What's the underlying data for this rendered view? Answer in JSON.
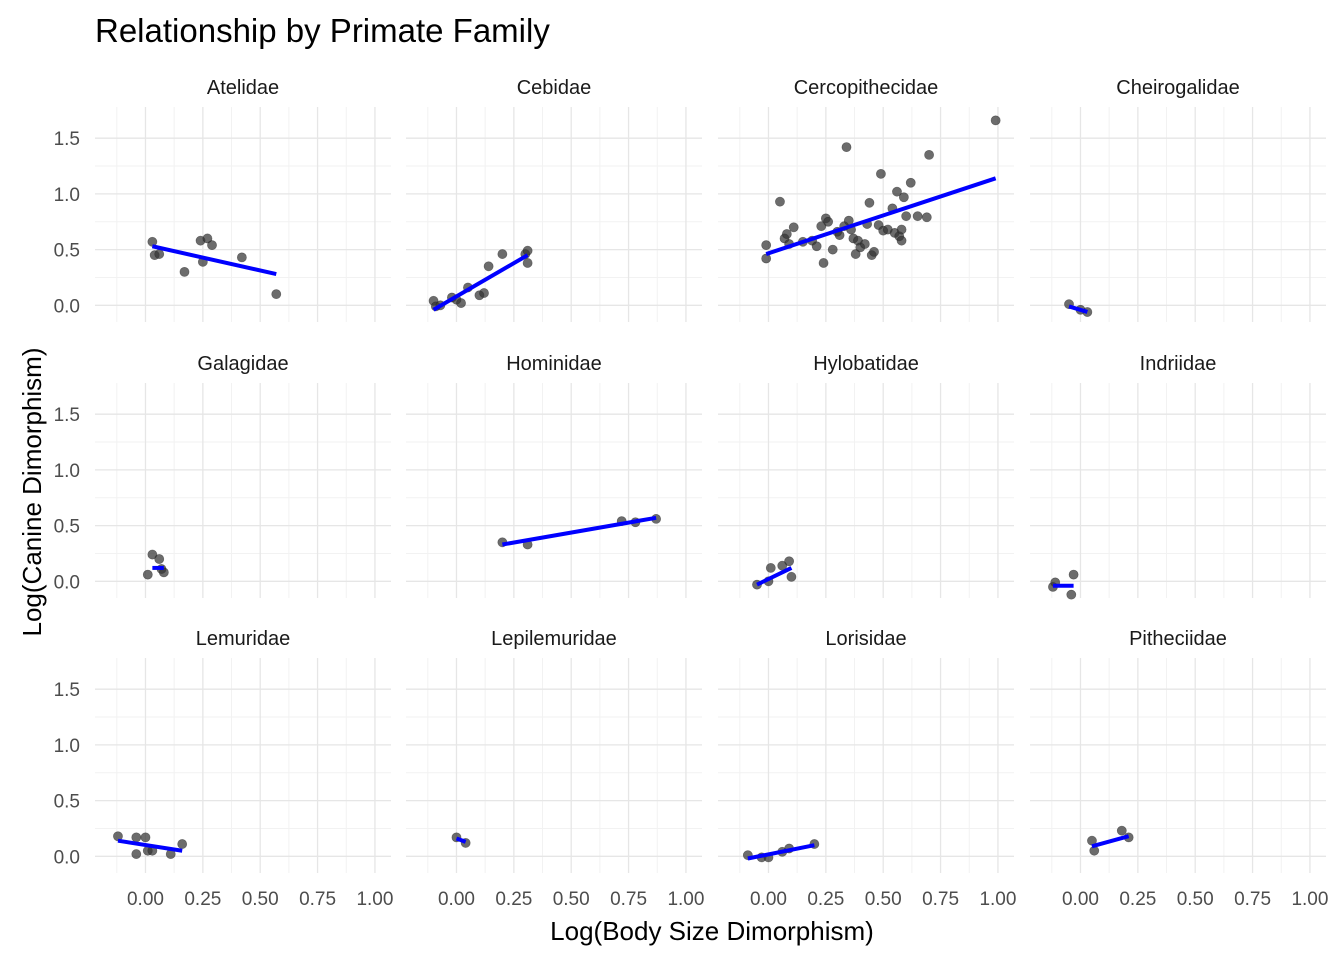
{
  "chart_data": {
    "type": "scatter",
    "title": "Relationship by Primate Family",
    "xlabel": "Log(Body Size Dimorphism)",
    "ylabel": "Log(Canine Dimorphism)",
    "xlim": [
      -0.22,
      1.07
    ],
    "ylim": [
      -0.15,
      1.78
    ],
    "x_ticks": [
      0.0,
      0.25,
      0.5,
      0.75,
      1.0
    ],
    "x_tick_labels": [
      "0.00",
      "0.25",
      "0.50",
      "0.75",
      "1.00"
    ],
    "y_ticks": [
      0.0,
      0.5,
      1.0,
      1.5
    ],
    "y_tick_labels": [
      "0.0",
      "0.5",
      "1.0",
      "1.5"
    ],
    "grid": true,
    "point_color": "#333333",
    "line_color": "#0000ff",
    "panels": [
      {
        "name": "Atelidae",
        "points": [
          [
            0.03,
            0.57
          ],
          [
            0.04,
            0.45
          ],
          [
            0.06,
            0.46
          ],
          [
            0.17,
            0.3
          ],
          [
            0.24,
            0.58
          ],
          [
            0.25,
            0.39
          ],
          [
            0.27,
            0.6
          ],
          [
            0.29,
            0.54
          ],
          [
            0.42,
            0.43
          ],
          [
            0.57,
            0.1
          ]
        ],
        "fit": [
          [
            0.03,
            0.53
          ],
          [
            0.57,
            0.28
          ]
        ]
      },
      {
        "name": "Cebidae",
        "points": [
          [
            -0.1,
            0.04
          ],
          [
            -0.09,
            -0.01
          ],
          [
            -0.07,
            0.0
          ],
          [
            -0.02,
            0.07
          ],
          [
            0.0,
            0.05
          ],
          [
            0.02,
            0.02
          ],
          [
            0.05,
            0.16
          ],
          [
            0.1,
            0.09
          ],
          [
            0.12,
            0.11
          ],
          [
            0.14,
            0.35
          ],
          [
            0.2,
            0.46
          ],
          [
            0.3,
            0.46
          ],
          [
            0.31,
            0.49
          ],
          [
            0.31,
            0.38
          ]
        ],
        "fit": [
          [
            -0.1,
            -0.04
          ],
          [
            0.31,
            0.45
          ]
        ]
      },
      {
        "name": "Cercopithecidae",
        "points": [
          [
            -0.01,
            0.42
          ],
          [
            -0.01,
            0.54
          ],
          [
            0.05,
            0.93
          ],
          [
            0.07,
            0.6
          ],
          [
            0.08,
            0.64
          ],
          [
            0.09,
            0.55
          ],
          [
            0.11,
            0.7
          ],
          [
            0.15,
            0.57
          ],
          [
            0.19,
            0.58
          ],
          [
            0.21,
            0.53
          ],
          [
            0.23,
            0.71
          ],
          [
            0.24,
            0.38
          ],
          [
            0.25,
            0.78
          ],
          [
            0.26,
            0.75
          ],
          [
            0.28,
            0.5
          ],
          [
            0.3,
            0.66
          ],
          [
            0.31,
            0.63
          ],
          [
            0.33,
            0.71
          ],
          [
            0.34,
            1.42
          ],
          [
            0.35,
            0.76
          ],
          [
            0.36,
            0.68
          ],
          [
            0.37,
            0.6
          ],
          [
            0.38,
            0.46
          ],
          [
            0.39,
            0.58
          ],
          [
            0.4,
            0.52
          ],
          [
            0.42,
            0.55
          ],
          [
            0.43,
            0.73
          ],
          [
            0.44,
            0.92
          ],
          [
            0.45,
            0.45
          ],
          [
            0.46,
            0.48
          ],
          [
            0.48,
            0.72
          ],
          [
            0.49,
            1.18
          ],
          [
            0.5,
            0.67
          ],
          [
            0.52,
            0.68
          ],
          [
            0.54,
            0.87
          ],
          [
            0.55,
            0.65
          ],
          [
            0.56,
            1.02
          ],
          [
            0.57,
            0.62
          ],
          [
            0.58,
            0.58
          ],
          [
            0.58,
            0.68
          ],
          [
            0.59,
            0.97
          ],
          [
            0.6,
            0.8
          ],
          [
            0.62,
            1.1
          ],
          [
            0.65,
            0.8
          ],
          [
            0.69,
            0.79
          ],
          [
            0.7,
            1.35
          ],
          [
            0.99,
            1.66
          ]
        ],
        "fit": [
          [
            -0.01,
            0.46
          ],
          [
            0.99,
            1.14
          ]
        ]
      },
      {
        "name": "Cheirogalidae",
        "points": [
          [
            -0.05,
            0.01
          ],
          [
            0.0,
            -0.04
          ],
          [
            0.03,
            -0.06
          ]
        ],
        "fit": [
          [
            -0.05,
            -0.01
          ],
          [
            0.03,
            -0.06
          ]
        ]
      },
      {
        "name": "Galagidae",
        "points": [
          [
            0.01,
            0.06
          ],
          [
            0.03,
            0.24
          ],
          [
            0.06,
            0.2
          ],
          [
            0.07,
            0.11
          ],
          [
            0.08,
            0.08
          ]
        ],
        "fit": [
          [
            0.03,
            0.12
          ],
          [
            0.08,
            0.12
          ]
        ]
      },
      {
        "name": "Hominidae",
        "points": [
          [
            0.2,
            0.35
          ],
          [
            0.31,
            0.33
          ],
          [
            0.72,
            0.54
          ],
          [
            0.78,
            0.53
          ],
          [
            0.87,
            0.56
          ]
        ],
        "fit": [
          [
            0.2,
            0.33
          ],
          [
            0.87,
            0.57
          ]
        ]
      },
      {
        "name": "Hylobatidae",
        "points": [
          [
            -0.05,
            -0.03
          ],
          [
            0.0,
            0.0
          ],
          [
            0.01,
            0.12
          ],
          [
            0.06,
            0.14
          ],
          [
            0.09,
            0.18
          ],
          [
            0.1,
            0.04
          ]
        ],
        "fit": [
          [
            -0.05,
            -0.03
          ],
          [
            0.1,
            0.12
          ]
        ]
      },
      {
        "name": "Indriidae",
        "points": [
          [
            -0.12,
            -0.05
          ],
          [
            -0.11,
            -0.01
          ],
          [
            -0.03,
            0.06
          ],
          [
            -0.04,
            -0.12
          ]
        ],
        "fit": [
          [
            -0.12,
            -0.04
          ],
          [
            -0.03,
            -0.04
          ]
        ]
      },
      {
        "name": "Lemuridae",
        "points": [
          [
            -0.12,
            0.18
          ],
          [
            -0.04,
            0.17
          ],
          [
            -0.04,
            0.02
          ],
          [
            0.0,
            0.17
          ],
          [
            0.01,
            0.05
          ],
          [
            0.03,
            0.05
          ],
          [
            0.11,
            0.02
          ],
          [
            0.16,
            0.11
          ]
        ],
        "fit": [
          [
            -0.12,
            0.14
          ],
          [
            0.16,
            0.05
          ]
        ]
      },
      {
        "name": "Lepilemuridae",
        "points": [
          [
            0.0,
            0.17
          ],
          [
            0.04,
            0.12
          ]
        ],
        "fit": [
          [
            0.0,
            0.16
          ],
          [
            0.04,
            0.13
          ]
        ]
      },
      {
        "name": "Lorisidae",
        "points": [
          [
            -0.09,
            0.01
          ],
          [
            -0.03,
            -0.01
          ],
          [
            0.0,
            -0.01
          ],
          [
            0.06,
            0.04
          ],
          [
            0.09,
            0.07
          ],
          [
            0.2,
            0.11
          ]
        ],
        "fit": [
          [
            -0.09,
            -0.02
          ],
          [
            0.2,
            0.1
          ]
        ]
      },
      {
        "name": "Pitheciidae",
        "points": [
          [
            0.05,
            0.14
          ],
          [
            0.06,
            0.05
          ],
          [
            0.18,
            0.23
          ],
          [
            0.21,
            0.17
          ]
        ],
        "fit": [
          [
            0.05,
            0.09
          ],
          [
            0.21,
            0.18
          ]
        ]
      }
    ]
  }
}
